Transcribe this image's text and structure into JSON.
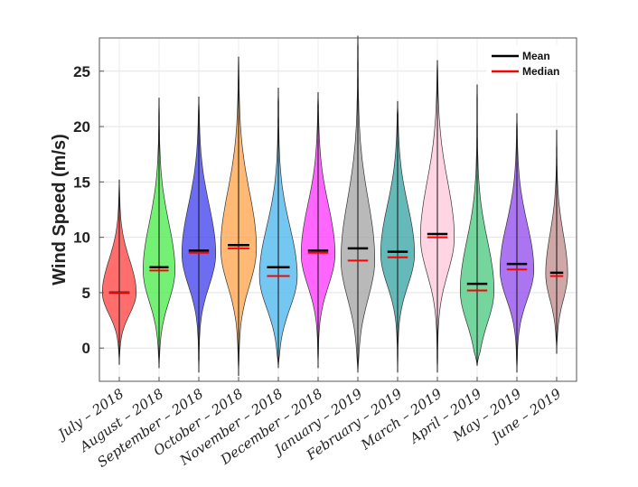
{
  "chart_data": {
    "type": "violin",
    "ylabel": "Wind Speed (m/s)",
    "xlabel": "",
    "ylim": [
      -3,
      28
    ],
    "yticks": [
      "0",
      "5",
      "10",
      "15",
      "20",
      "25"
    ],
    "yticks_values": [
      0,
      5,
      10,
      15,
      20,
      25
    ],
    "grid": true,
    "legend": {
      "position": "top-right",
      "items": [
        {
          "label": "Mean",
          "color": "#000000"
        },
        {
          "label": "Median",
          "color": "#ff0000"
        }
      ]
    },
    "series": [
      {
        "name": "July – 2018",
        "color": "#ff4d4d",
        "min": -1.5,
        "max": 15.2,
        "mean": 5.0,
        "median": 5.0,
        "mode": 5.0,
        "width": 0.85
      },
      {
        "name": "August – 2018",
        "color": "#55ee55",
        "min": -1.8,
        "max": 22.6,
        "mean": 7.3,
        "median": 7.0,
        "mode": 7.0,
        "width": 0.8
      },
      {
        "name": "September – 2018",
        "color": "#4d4dee",
        "min": -2.2,
        "max": 22.7,
        "mean": 8.8,
        "median": 8.6,
        "mode": 8.5,
        "width": 0.85
      },
      {
        "name": "October – 2018",
        "color": "#ffaa55",
        "min": -2.5,
        "max": 26.3,
        "mean": 9.3,
        "median": 9.0,
        "mode": 9.0,
        "width": 0.9
      },
      {
        "name": "November – 2018",
        "color": "#55bbee",
        "min": -1.8,
        "max": 23.5,
        "mean": 7.3,
        "median": 6.5,
        "mode": 6.5,
        "width": 0.95
      },
      {
        "name": "December – 2018",
        "color": "#ff44ff",
        "min": -1.8,
        "max": 23.1,
        "mean": 8.8,
        "median": 8.6,
        "mode": 8.5,
        "width": 0.85
      },
      {
        "name": "January – 2019",
        "color": "#aaaaaa",
        "min": -2.2,
        "max": 28.2,
        "mean": 9.0,
        "median": 7.9,
        "mode": 8.0,
        "width": 0.85
      },
      {
        "name": "February – 2019",
        "color": "#44aaaa",
        "min": -2.2,
        "max": 22.3,
        "mean": 8.7,
        "median": 8.2,
        "mode": 8.5,
        "width": 0.85
      },
      {
        "name": "March – 2019",
        "color": "#ffccdd",
        "min": -2.2,
        "max": 26.0,
        "mean": 10.3,
        "median": 10.0,
        "mode": 10.0,
        "width": 0.85
      },
      {
        "name": "April – 2019",
        "color": "#55cc88",
        "min": -1.6,
        "max": 23.8,
        "mean": 5.8,
        "median": 5.2,
        "mode": 5.2,
        "width": 0.85
      },
      {
        "name": "May – 2019",
        "color": "#9955ee",
        "min": -2.2,
        "max": 21.2,
        "mean": 7.6,
        "median": 7.1,
        "mode": 7.1,
        "width": 0.85
      },
      {
        "name": "June – 2019",
        "color": "#c49494",
        "min": -0.5,
        "max": 19.7,
        "mean": 6.8,
        "median": 6.5,
        "mode": 6.7,
        "width": 0.55
      }
    ]
  }
}
